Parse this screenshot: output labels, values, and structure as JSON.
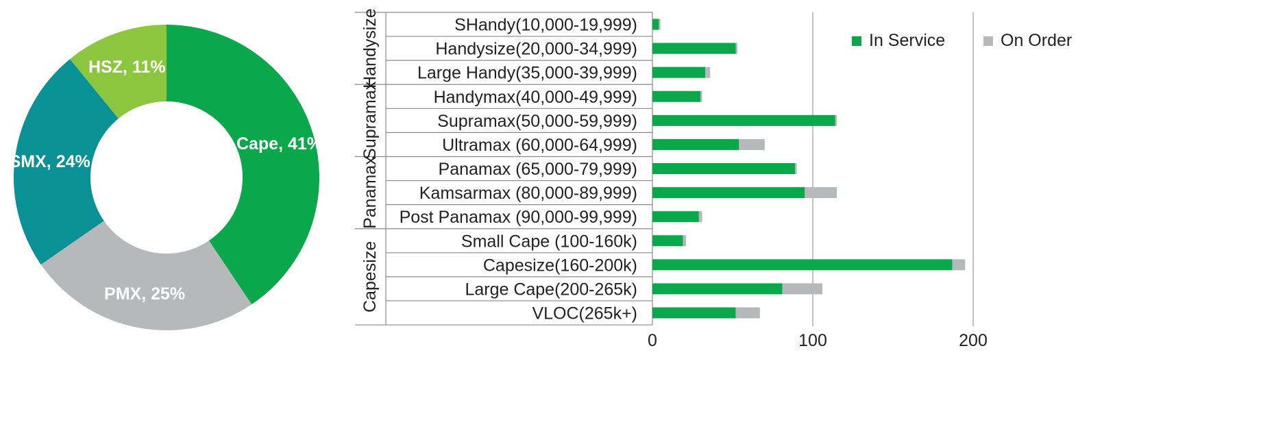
{
  "colors": {
    "cape": "#0aa84a",
    "pmx": "#b7b8ba",
    "smx": "#099196",
    "hsz": "#8cc63e",
    "in_service": "#0aa84a",
    "on_order": "#b7b8ba",
    "grid": "#9a9a9a",
    "table_line": "#8a8a8a"
  },
  "chart_data": [
    {
      "type": "pie",
      "variant": "donut",
      "slices": [
        {
          "label": "Cape, 41%",
          "value": 41,
          "color_key": "cape"
        },
        {
          "label": "PMX, 25%",
          "value": 25,
          "color_key": "pmx"
        },
        {
          "label": "SMX, 24%",
          "value": 24,
          "color_key": "smx"
        },
        {
          "label": "HSZ, 11%",
          "value": 11,
          "color_key": "hsz"
        }
      ]
    },
    {
      "type": "bar",
      "orientation": "horizontal",
      "stacked": true,
      "groups": [
        {
          "label": "Handysize",
          "categories": [
            "SHandy(10,000-19,999)",
            "Handysize(20,000-34,999)",
            "Large Handy(35,000-39,999)"
          ]
        },
        {
          "label": "Supramax",
          "categories": [
            "Handymax(40,000-49,999)",
            "Supramax(50,000-59,999)",
            "Ultramax (60,000-64,999)"
          ]
        },
        {
          "label": "Panamax",
          "categories": [
            "Panamax (65,000-79,999)",
            "Kamsarmax (80,000-89,999)",
            "Post Panamax (90,000-99,999)"
          ]
        },
        {
          "label": "Capesize",
          "categories": [
            "Small Cape (100-160k)",
            "Capesize(160-200k)",
            "Large Cape(200-265k)",
            "VLOC(265k+)"
          ]
        }
      ],
      "categories": [
        "SHandy(10,000-19,999)",
        "Handysize(20,000-34,999)",
        "Large Handy(35,000-39,999)",
        "Handymax(40,000-49,999)",
        "Supramax(50,000-59,999)",
        "Ultramax (60,000-64,999)",
        "Panamax (65,000-79,999)",
        "Kamsarmax (80,000-89,999)",
        "Post Panamax (90,000-99,999)",
        "Small Cape (100-160k)",
        "Capesize(160-200k)",
        "Large Cape(200-265k)",
        "VLOC(265k+)"
      ],
      "series": [
        {
          "name": "In Service",
          "color_key": "in_service",
          "values": [
            4,
            52,
            33,
            30,
            114,
            54,
            89,
            95,
            29,
            19,
            187,
            81,
            52
          ]
        },
        {
          "name": "On Order",
          "color_key": "on_order",
          "values": [
            1,
            1,
            3,
            1,
            1,
            16,
            1,
            20,
            2,
            2,
            8,
            25,
            15
          ]
        }
      ],
      "xlim": [
        0,
        200
      ],
      "xticks": [
        0,
        100,
        200
      ],
      "xtick_labels": [
        "0",
        "100",
        "200"
      ],
      "grid": true,
      "legend": {
        "position": "top-right",
        "entries": [
          "In Service",
          "On Order"
        ]
      }
    }
  ]
}
